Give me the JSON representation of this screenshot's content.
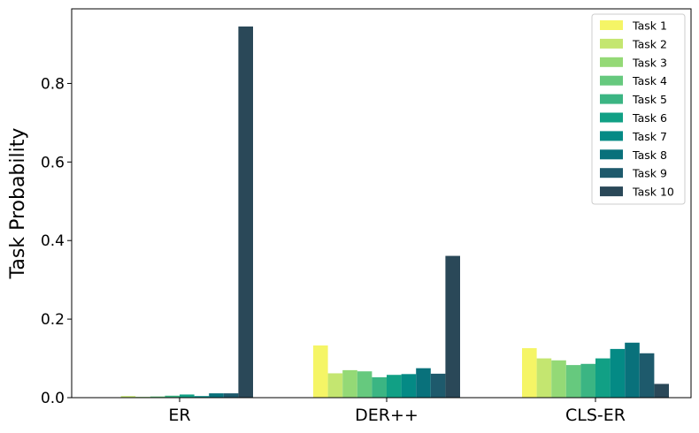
{
  "chart_data": {
    "type": "bar",
    "title": "",
    "xlabel": "",
    "ylabel": "Task Probability",
    "ylim": [
      0,
      0.99
    ],
    "yticks": [
      "0.0",
      "0.2",
      "0.4",
      "0.6",
      "0.8"
    ],
    "ytick_values": [
      0.0,
      0.2,
      0.4,
      0.6,
      0.8
    ],
    "categories": [
      "ER",
      "DER++",
      "CLS-ER"
    ],
    "legend_position": "top-right",
    "grid": false,
    "series": [
      {
        "name": "Task 1",
        "color": "#f5f566",
        "values": [
          0.001,
          0.133,
          0.126
        ]
      },
      {
        "name": "Task 2",
        "color": "#c4e670",
        "values": [
          0.004,
          0.062,
          0.1
        ]
      },
      {
        "name": "Task 3",
        "color": "#94d976",
        "values": [
          0.002,
          0.07,
          0.095
        ]
      },
      {
        "name": "Task 4",
        "color": "#66c97e",
        "values": [
          0.003,
          0.067,
          0.083
        ]
      },
      {
        "name": "Task 5",
        "color": "#3bb583",
        "values": [
          0.005,
          0.052,
          0.086
        ]
      },
      {
        "name": "Task 6",
        "color": "#11a085",
        "values": [
          0.008,
          0.058,
          0.1
        ]
      },
      {
        "name": "Task 7",
        "color": "#048a85",
        "values": [
          0.004,
          0.06,
          0.124
        ]
      },
      {
        "name": "Task 8",
        "color": "#09717b",
        "values": [
          0.011,
          0.075,
          0.14
        ]
      },
      {
        "name": "Task 9",
        "color": "#1e5a6c",
        "values": [
          0.011,
          0.061,
          0.113
        ]
      },
      {
        "name": "Task 10",
        "color": "#2a4858",
        "values": [
          0.945,
          0.361,
          0.035
        ]
      }
    ]
  }
}
